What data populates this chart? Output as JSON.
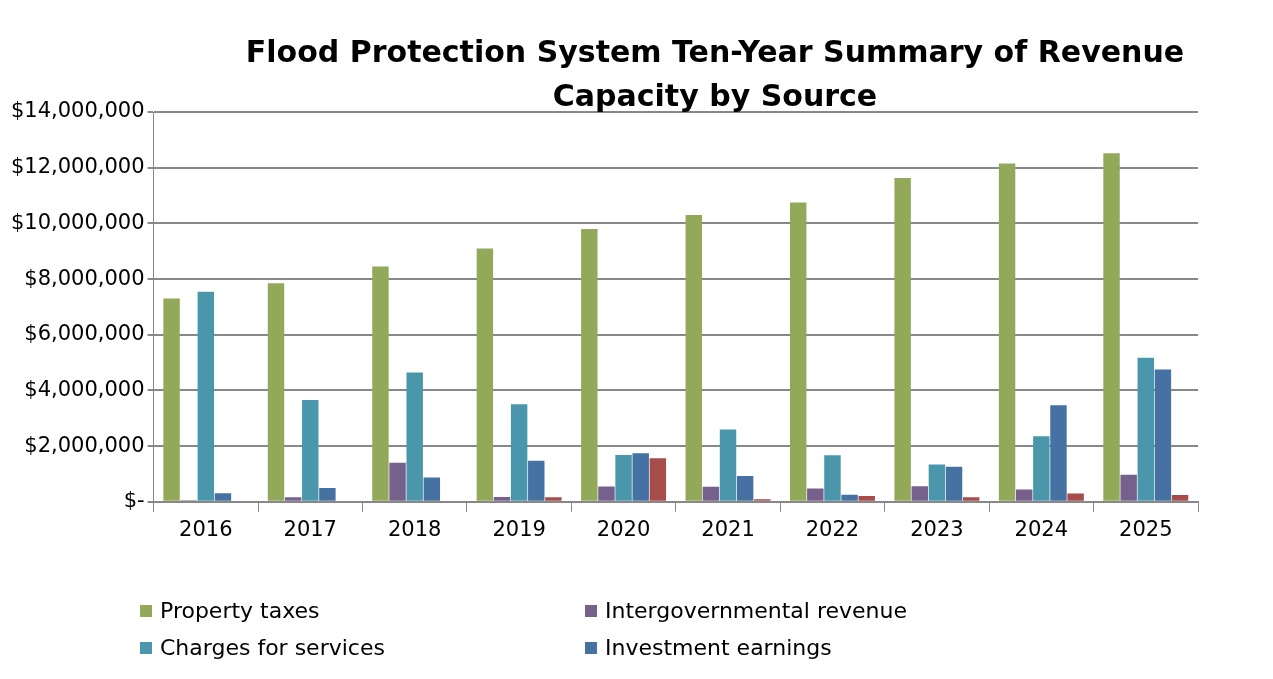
{
  "chart_data": {
    "type": "bar",
    "title": "Flood Protection System Ten-Year Summary of Revenue Capacity by Source",
    "categories": [
      "2016",
      "2017",
      "2018",
      "2019",
      "2020",
      "2021",
      "2022",
      "2023",
      "2024",
      "2025"
    ],
    "series": [
      {
        "name": "Property taxes",
        "color": "#93a95a",
        "values": [
          7300000,
          7850000,
          8450000,
          9100000,
          9800000,
          10300000,
          10750000,
          11630000,
          12150000,
          12520000
        ]
      },
      {
        "name": "Intergovernmental revenue",
        "color": "#76608c",
        "values": [
          60000,
          160000,
          1400000,
          170000,
          550000,
          540000,
          480000,
          560000,
          440000,
          970000
        ]
      },
      {
        "name": "Charges for services",
        "color": "#4a96ab",
        "values": [
          7540000,
          3660000,
          4640000,
          3500000,
          1680000,
          2600000,
          1670000,
          1340000,
          2350000,
          5170000
        ]
      },
      {
        "name": "Investment earnings",
        "color": "#4672a3",
        "values": [
          310000,
          500000,
          870000,
          1470000,
          1740000,
          930000,
          250000,
          1260000,
          3470000,
          4750000
        ]
      },
      {
        "color": "#a74b4b",
        "values": [
          null,
          0,
          null,
          160000,
          1560000,
          90000,
          210000,
          160000,
          300000,
          240000
        ]
      }
    ],
    "ylim": [
      0,
      14000000
    ],
    "yticks": [
      {
        "value": 0,
        "label": "$-"
      },
      {
        "value": 2000000,
        "label": "$2,000,000"
      },
      {
        "value": 4000000,
        "label": "$4,000,000"
      },
      {
        "value": 6000000,
        "label": "$6,000,000"
      },
      {
        "value": 8000000,
        "label": "$8,000,000"
      },
      {
        "value": 10000000,
        "label": "$10,000,000"
      },
      {
        "value": 12000000,
        "label": "$12,000,000"
      },
      {
        "value": 14000000,
        "label": "$14,000,000"
      }
    ],
    "grid": "y",
    "legend": "bottom"
  }
}
